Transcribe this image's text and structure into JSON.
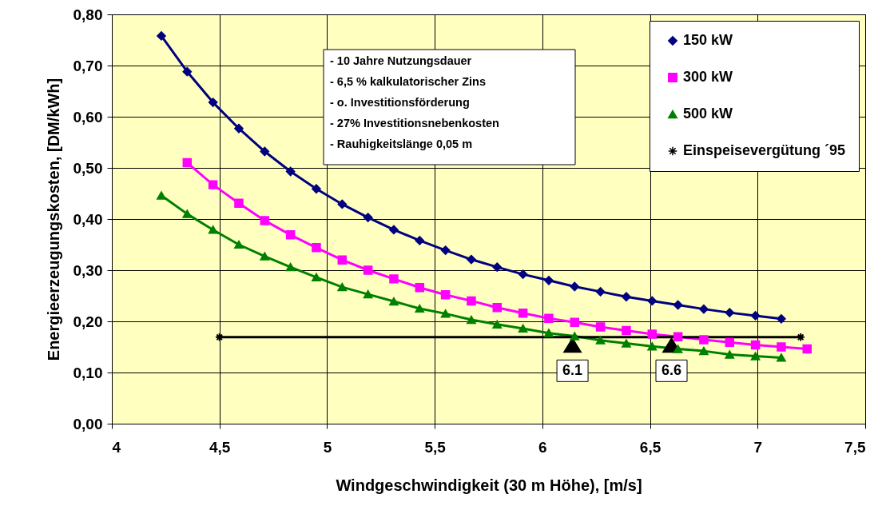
{
  "chart_data": {
    "type": "line",
    "xlabel": "Windgeschwindigkeit (30 m Höhe), [m/s]",
    "ylabel": "Energieerzeugungskosten, [DM/kWh]",
    "xlim": [
      4,
      7.5
    ],
    "ylim": [
      0,
      0.8
    ],
    "xticks": [
      4,
      {
        "value": 4.5,
        "label": "4,5"
      },
      5,
      {
        "value": 5.5,
        "label": "5,5"
      },
      6,
      {
        "value": 6.5,
        "label": "6,5"
      },
      7,
      {
        "value": 7.5,
        "label": "7,5"
      }
    ],
    "yticks": [
      {
        "value": 0,
        "label": "0,00"
      },
      {
        "value": 0.1,
        "label": "0,10"
      },
      {
        "value": 0.2,
        "label": "0,20"
      },
      {
        "value": 0.3,
        "label": "0,30"
      },
      {
        "value": 0.4,
        "label": "0,40"
      },
      {
        "value": 0.5,
        "label": "0,50"
      },
      {
        "value": 0.6,
        "label": "0,60"
      },
      {
        "value": 0.7,
        "label": "0,70"
      },
      {
        "value": 0.8,
        "label": "0,80"
      }
    ],
    "grid": true,
    "legend": "top right",
    "series": [
      {
        "name": "150 kW",
        "color": "#000080",
        "marker": "diamond",
        "x": [
          4.23,
          4.35,
          4.47,
          4.59,
          4.71,
          4.83,
          4.95,
          5.07,
          5.19,
          5.31,
          5.43,
          5.55,
          5.67,
          5.79,
          5.91,
          6.03,
          6.15,
          6.27,
          6.39,
          6.51,
          6.63,
          6.75,
          6.87,
          6.99,
          7.11
        ],
        "values": [
          0.758,
          0.688,
          0.628,
          0.577,
          0.532,
          0.493,
          0.459,
          0.429,
          0.403,
          0.379,
          0.358,
          0.339,
          0.321,
          0.306,
          0.292,
          0.28,
          0.268,
          0.258,
          0.248,
          0.24,
          0.232,
          0.224,
          0.217,
          0.211,
          0.205
        ]
      },
      {
        "name": "300 kW",
        "color": "#ff00ff",
        "marker": "square",
        "x": [
          4.35,
          4.47,
          4.59,
          4.71,
          4.83,
          4.95,
          5.07,
          5.19,
          5.31,
          5.43,
          5.55,
          5.67,
          5.79,
          5.91,
          6.03,
          6.15,
          6.27,
          6.39,
          6.51,
          6.63,
          6.75,
          6.87,
          6.99,
          7.11,
          7.23
        ],
        "values": [
          0.51,
          0.467,
          0.431,
          0.397,
          0.369,
          0.344,
          0.32,
          0.3,
          0.283,
          0.266,
          0.252,
          0.24,
          0.227,
          0.216,
          0.206,
          0.198,
          0.189,
          0.182,
          0.175,
          0.17,
          0.164,
          0.159,
          0.154,
          0.15,
          0.146
        ]
      },
      {
        "name": "500 kW",
        "color": "#008000",
        "marker": "triangle",
        "x": [
          4.23,
          4.35,
          4.47,
          4.59,
          4.71,
          4.83,
          4.95,
          5.07,
          5.19,
          5.31,
          5.43,
          5.55,
          5.67,
          5.79,
          5.91,
          6.03,
          6.15,
          6.27,
          6.39,
          6.51,
          6.63,
          6.75,
          6.87,
          6.99,
          7.11
        ],
        "values": [
          0.446,
          0.41,
          0.379,
          0.35,
          0.327,
          0.306,
          0.286,
          0.267,
          0.253,
          0.239,
          0.225,
          0.215,
          0.203,
          0.194,
          0.186,
          0.177,
          0.171,
          0.163,
          0.157,
          0.151,
          0.146,
          0.142,
          0.135,
          0.132,
          0.129
        ]
      },
      {
        "name": "Einspeisevergütung ´95",
        "color": "#000000",
        "marker": "cross",
        "x": [
          4.5,
          7.2
        ],
        "values": [
          0.169,
          0.169
        ]
      }
    ],
    "annotations": [
      "- 10 Jahre Nutzungsdauer",
      "- 6,5 % kalkulatorischer Zins",
      "- o. Investitionsförderung",
      "- 27% Investitionsnebenkosten",
      "- Rauhigkeitslänge 0,05 m",
      {
        "text": "6.1",
        "x": 6.14,
        "y": 0.169
      },
      {
        "text": "6.6",
        "x": 6.6,
        "y": 0.169
      }
    ]
  }
}
